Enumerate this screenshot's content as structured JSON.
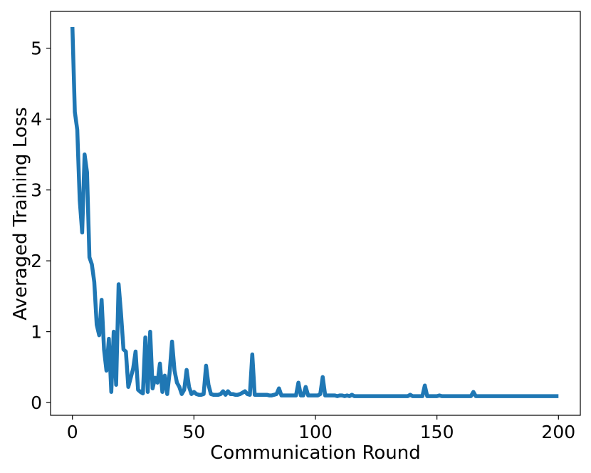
{
  "chart_data": {
    "type": "line",
    "title": "",
    "xlabel": "Communication Round",
    "ylabel": "Averaged Training Loss",
    "xlim": [
      -9,
      209
    ],
    "ylim": [
      -0.18,
      5.52
    ],
    "xticks": [
      0,
      50,
      100,
      150,
      200
    ],
    "yticks": [
      0,
      1,
      2,
      3,
      4,
      5
    ],
    "grid": false,
    "legend": "none",
    "series": [
      {
        "color": "#1f77b4",
        "x": [
          0,
          1,
          2,
          3,
          4,
          5,
          6,
          7,
          8,
          9,
          10,
          11,
          12,
          13,
          14,
          15,
          16,
          17,
          18,
          19,
          20,
          21,
          22,
          23,
          24,
          25,
          26,
          27,
          28,
          29,
          30,
          31,
          32,
          33,
          34,
          35,
          36,
          37,
          38,
          39,
          40,
          41,
          42,
          43,
          44,
          45,
          46,
          47,
          48,
          49,
          50,
          51,
          52,
          53,
          54,
          55,
          56,
          57,
          58,
          59,
          60,
          61,
          62,
          63,
          64,
          65,
          66,
          67,
          68,
          69,
          70,
          71,
          72,
          73,
          74,
          75,
          76,
          77,
          78,
          79,
          80,
          81,
          82,
          83,
          84,
          85,
          86,
          87,
          88,
          89,
          90,
          91,
          92,
          93,
          94,
          95,
          96,
          97,
          98,
          99,
          100,
          101,
          102,
          103,
          104,
          105,
          106,
          107,
          108,
          109,
          110,
          111,
          112,
          113,
          114,
          115,
          116,
          117,
          118,
          119,
          120,
          125,
          130,
          135,
          138,
          139,
          140,
          143,
          144,
          145,
          146,
          147,
          150,
          151,
          152,
          155,
          160,
          163,
          164,
          165,
          166,
          167,
          170,
          175,
          180,
          185,
          186,
          187,
          190,
          195,
          200
        ],
        "y": [
          5.3,
          4.1,
          3.85,
          2.85,
          2.4,
          3.5,
          3.25,
          2.05,
          1.95,
          1.7,
          1.1,
          0.95,
          1.45,
          0.75,
          0.45,
          0.9,
          0.15,
          1.0,
          0.25,
          1.67,
          1.25,
          0.75,
          0.72,
          0.22,
          0.35,
          0.48,
          0.72,
          0.18,
          0.15,
          0.13,
          0.92,
          0.15,
          1.0,
          0.2,
          0.35,
          0.28,
          0.55,
          0.15,
          0.38,
          0.12,
          0.42,
          0.86,
          0.45,
          0.28,
          0.22,
          0.12,
          0.18,
          0.46,
          0.22,
          0.12,
          0.15,
          0.12,
          0.11,
          0.11,
          0.12,
          0.52,
          0.25,
          0.12,
          0.11,
          0.11,
          0.11,
          0.12,
          0.16,
          0.11,
          0.16,
          0.12,
          0.12,
          0.11,
          0.11,
          0.12,
          0.14,
          0.16,
          0.12,
          0.11,
          0.68,
          0.11,
          0.11,
          0.11,
          0.11,
          0.11,
          0.11,
          0.1,
          0.1,
          0.11,
          0.12,
          0.2,
          0.1,
          0.1,
          0.1,
          0.1,
          0.1,
          0.1,
          0.1,
          0.28,
          0.1,
          0.1,
          0.22,
          0.1,
          0.1,
          0.1,
          0.1,
          0.1,
          0.12,
          0.36,
          0.1,
          0.1,
          0.1,
          0.1,
          0.1,
          0.09,
          0.1,
          0.1,
          0.09,
          0.1,
          0.09,
          0.11,
          0.09,
          0.09,
          0.09,
          0.09,
          0.09,
          0.09,
          0.09,
          0.09,
          0.09,
          0.11,
          0.09,
          0.09,
          0.09,
          0.24,
          0.09,
          0.09,
          0.09,
          0.1,
          0.09,
          0.09,
          0.09,
          0.09,
          0.09,
          0.15,
          0.09,
          0.09,
          0.09,
          0.09,
          0.09,
          0.09,
          0.09,
          0.09,
          0.09,
          0.09,
          0.09
        ]
      }
    ]
  }
}
